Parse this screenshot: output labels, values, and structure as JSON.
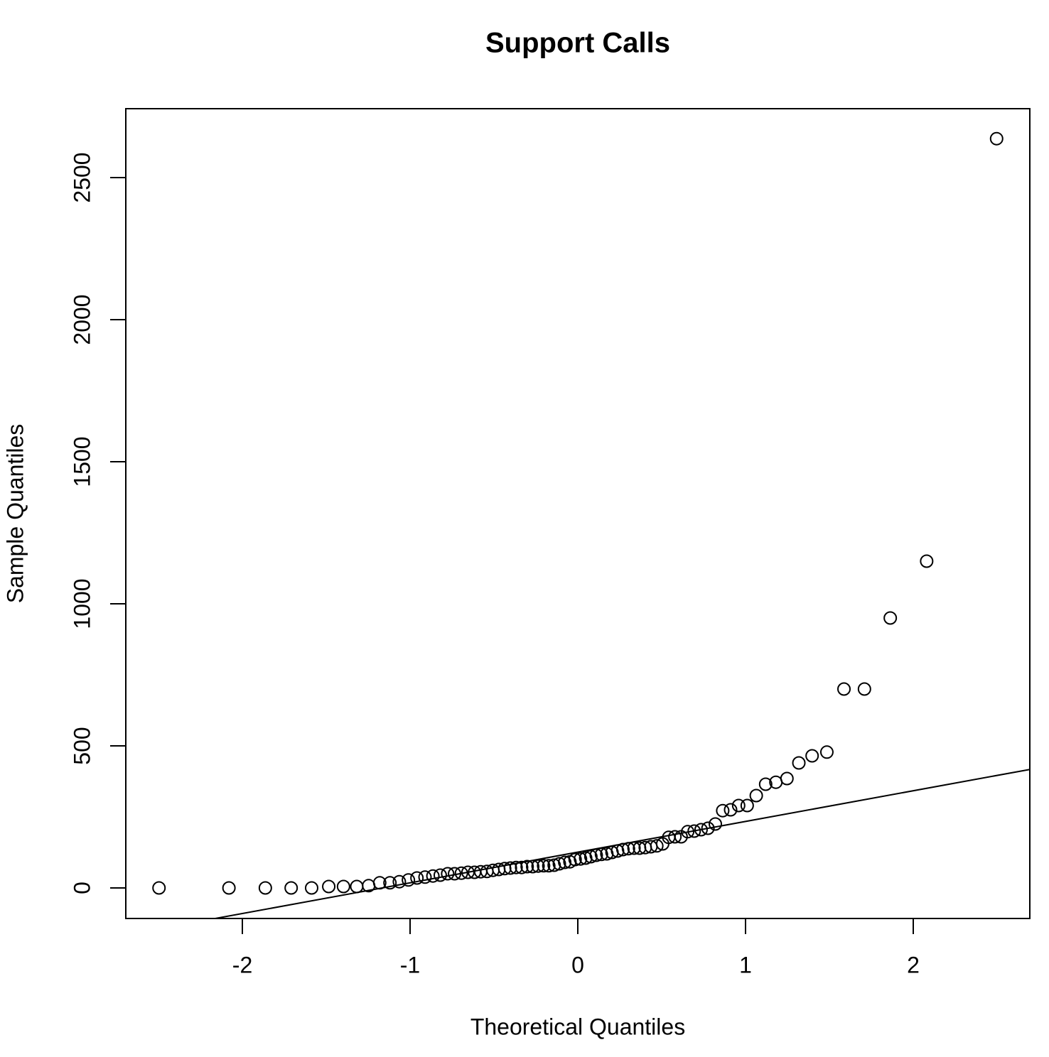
{
  "chart_data": {
    "type": "scatter",
    "title": "Support Calls",
    "x_label": "Theoretical Quantiles",
    "y_label": "Sample Quantiles",
    "x": [
      -2.497,
      -2.08,
      -1.863,
      -1.709,
      -1.587,
      -1.485,
      -1.397,
      -1.318,
      -1.247,
      -1.181,
      -1.12,
      -1.064,
      -1.01,
      -0.959,
      -0.911,
      -0.864,
      -0.82,
      -0.776,
      -0.735,
      -0.694,
      -0.655,
      -0.616,
      -0.579,
      -0.542,
      -0.506,
      -0.471,
      -0.436,
      -0.402,
      -0.368,
      -0.335,
      -0.302,
      -0.269,
      -0.237,
      -0.204,
      -0.173,
      -0.141,
      -0.11,
      -0.078,
      -0.047,
      -0.016,
      0.016,
      0.047,
      0.078,
      0.11,
      0.141,
      0.173,
      0.204,
      0.237,
      0.269,
      0.302,
      0.335,
      0.368,
      0.402,
      0.436,
      0.471,
      0.506,
      0.542,
      0.579,
      0.616,
      0.655,
      0.694,
      0.735,
      0.776,
      0.82,
      0.864,
      0.911,
      0.959,
      1.01,
      1.064,
      1.12,
      1.181,
      1.247,
      1.318,
      1.397,
      1.485,
      1.587,
      1.709,
      1.863,
      2.08,
      2.497
    ],
    "values": [
      0,
      0,
      0,
      0,
      0,
      5,
      5,
      5,
      8,
      18,
      18,
      22,
      28,
      35,
      38,
      42,
      45,
      50,
      50,
      52,
      55,
      55,
      57,
      58,
      62,
      65,
      68,
      70,
      72,
      72,
      75,
      75,
      77,
      78,
      78,
      80,
      85,
      90,
      92,
      100,
      102,
      105,
      110,
      115,
      118,
      120,
      125,
      130,
      135,
      138,
      140,
      140,
      142,
      145,
      148,
      155,
      178,
      180,
      180,
      198,
      200,
      205,
      210,
      225,
      272,
      275,
      290,
      290,
      325,
      365,
      372,
      385,
      440,
      465,
      478,
      700,
      700,
      950,
      1150,
      2637
    ],
    "color": "#000000",
    "line": {
      "intercept": 126,
      "slope": 108
    },
    "xlim": [
      -2.695,
      2.695
    ],
    "xticks": [
      -2,
      -1,
      0,
      1,
      2
    ],
    "ylim": [
      -107.5,
      2742.5
    ],
    "yticks": [
      0,
      500,
      1000,
      1500,
      2000,
      2500
    ]
  }
}
